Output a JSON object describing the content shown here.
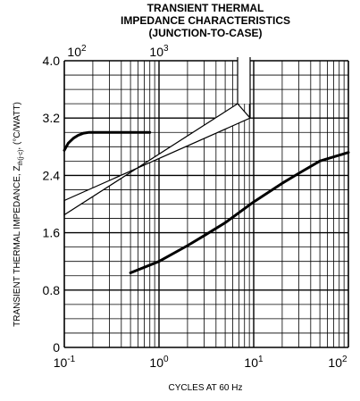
{
  "chart_data": {
    "type": "line",
    "title": [
      "TRANSIENT THERMAL",
      "IMPEDANCE CHARACTERISTICS",
      "(JUNCTION-TO-CASE)"
    ],
    "xlabel": "CYCLES AT 60 Hz",
    "ylabel": "TRANSIENT THERMAL IMPEDANCE, Z",
    "ylabel_sub": "th(j-c)",
    "ylabel_suffix": ", (°C/WATT)",
    "xscale": "log",
    "x_bottom": {
      "range": [
        0.1,
        100
      ],
      "ticks": [
        {
          "value": 0.1,
          "base": "10",
          "exp": "-1"
        },
        {
          "value": 1,
          "base": "10",
          "exp": "0"
        },
        {
          "value": 10,
          "base": "10",
          "exp": "1"
        },
        {
          "value": 100,
          "base": "10",
          "exp": "2"
        }
      ]
    },
    "x_top": {
      "range": [
        100,
        1000
      ],
      "ticks": [
        {
          "value": 100,
          "base": "10",
          "exp": "2"
        },
        {
          "value": 1000,
          "base": "10",
          "exp": "3"
        }
      ]
    },
    "ylim": [
      0,
      4.0
    ],
    "yticks": [
      "0",
      "0.8",
      "1.6",
      "2.4",
      "3.2",
      "4.0"
    ],
    "grid": true,
    "series": [
      {
        "axis": "top",
        "x": [
          100,
          110,
          125,
          140,
          160,
          180,
          200,
          250,
          300,
          400,
          600,
          800
        ],
        "y": [
          2.75,
          2.85,
          2.92,
          2.96,
          2.99,
          3.0,
          3.0,
          3.0,
          3.0,
          3.0,
          3.0,
          3.0
        ]
      },
      {
        "axis": "bottom",
        "x": [
          0.5,
          1,
          2,
          3,
          5,
          10,
          20,
          30,
          50,
          100
        ],
        "y": [
          1.04,
          1.2,
          1.42,
          1.56,
          1.74,
          2.03,
          2.29,
          2.43,
          2.6,
          2.72
        ]
      }
    ]
  }
}
